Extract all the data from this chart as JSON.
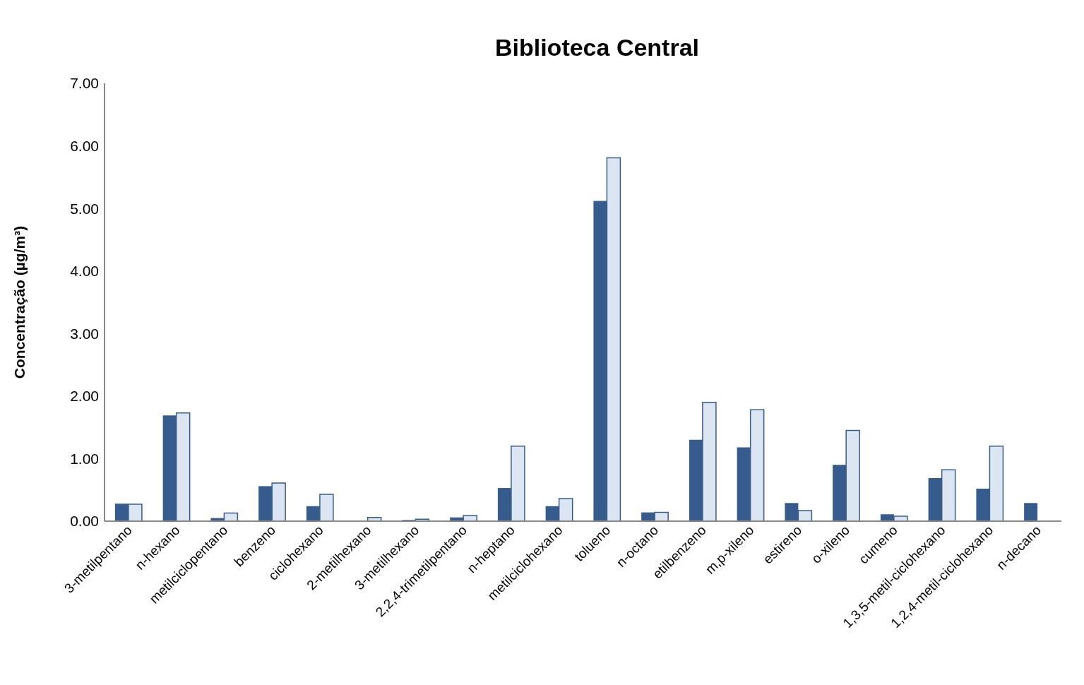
{
  "chart_data": {
    "type": "bar",
    "title": "Biblioteca Central",
    "ylabel": "Concentração (µg/m³)",
    "categories": [
      "3-metilpentano",
      "n-hexano",
      "metilciclopentano",
      "benzeno",
      "ciclohexano",
      "2-metilhexano",
      "3-metilhexano",
      "2,2,4-trimetilpentano",
      "n-heptano",
      "metilciclohexano",
      "tolueno",
      "n-octano",
      "etilbenzeno",
      "m,p-xileno",
      "estireno",
      "o-xileno",
      "cumeno",
      "1,3,5-metil-ciclohexano",
      "1,2,4-metil-ciclohexano",
      "n-decano"
    ],
    "series": [
      {
        "color": "#365c8d",
        "values": [
          0.28,
          1.69,
          0.05,
          0.56,
          0.24,
          0.01,
          0.02,
          0.06,
          0.53,
          0.24,
          5.12,
          0.14,
          1.3,
          1.18,
          0.29,
          0.9,
          0.11,
          0.69,
          0.52,
          0.29
        ]
      },
      {
        "color": "#dce6f2",
        "values": [
          0.27,
          1.73,
          0.13,
          0.61,
          0.43,
          0.06,
          0.03,
          0.09,
          1.2,
          0.36,
          5.81,
          0.14,
          1.9,
          1.78,
          0.17,
          1.45,
          0.08,
          0.82,
          1.2,
          null
        ]
      }
    ],
    "ylim": [
      0,
      7
    ],
    "yticks": [
      {
        "value": 0,
        "label": "0.00"
      },
      {
        "value": 1,
        "label": "1.00"
      },
      {
        "value": 2,
        "label": "2.00"
      },
      {
        "value": 3,
        "label": "3.00"
      },
      {
        "value": 4,
        "label": "4.00"
      },
      {
        "value": 5,
        "label": "5.00"
      },
      {
        "value": 6,
        "label": "6.00"
      },
      {
        "value": 7,
        "label": "7.00"
      }
    ],
    "grid": false,
    "legend": false
  }
}
